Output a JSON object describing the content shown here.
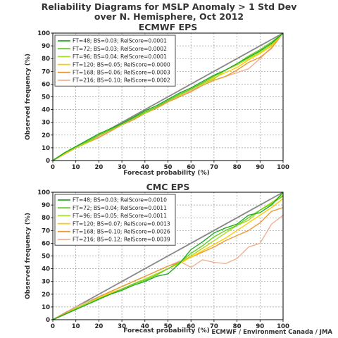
{
  "title": {
    "line1": "Reliability Diagrams for MSLP Anomaly > 1 Std Dev",
    "line2": "over N. Hemisphere, Oct 2012"
  },
  "credit": "ECMWF / Environment Canada / JMA",
  "chart_data": [
    {
      "type": "line",
      "title": "ECMWF EPS",
      "xlabel": "Forecast probability (%)",
      "ylabel": "Observed frequency (%)",
      "xlim": [
        0,
        100
      ],
      "ylim": [
        0,
        100
      ],
      "xticks": [
        "0",
        "10",
        "20",
        "30",
        "40",
        "50",
        "60",
        "70",
        "80",
        "90",
        "100"
      ],
      "yticks": [
        "0",
        "10",
        "20",
        "30",
        "40",
        "50",
        "60",
        "70",
        "80",
        "90",
        "100"
      ],
      "grid": true,
      "legend_position": "top-left",
      "diagonal": {
        "color": "#888888"
      },
      "x": [
        0,
        5,
        10,
        15,
        20,
        25,
        30,
        35,
        40,
        45,
        50,
        55,
        60,
        65,
        70,
        75,
        80,
        85,
        90,
        95,
        100
      ],
      "series": [
        {
          "name": "FT=48; BS=0.03; RelScore=0.0001",
          "color": "#22aa22",
          "values": [
            0,
            6,
            11,
            16,
            21,
            25,
            29,
            34,
            39,
            43,
            48,
            53,
            57,
            62,
            67,
            71,
            76,
            81,
            86,
            92,
            100
          ]
        },
        {
          "name": "FT=72; BS=0.03; RelScore=0.0002",
          "color": "#66cc22",
          "values": [
            0,
            6,
            11,
            15,
            20,
            24,
            29,
            33,
            38,
            42,
            47,
            52,
            56,
            61,
            66,
            71,
            76,
            82,
            87,
            93,
            100
          ]
        },
        {
          "name": "FT=96; BS=0.04; RelScore=0.0001",
          "color": "#aadd22",
          "values": [
            0,
            6,
            10,
            14,
            20,
            25,
            28,
            34,
            37,
            42,
            47,
            51,
            56,
            60,
            64,
            71,
            75,
            80,
            85,
            91,
            100
          ]
        },
        {
          "name": "FT=120; BS=0.05; RelScore=0.0000",
          "color": "#ffcc00",
          "values": [
            0,
            5,
            10,
            15,
            20,
            24,
            29,
            33,
            38,
            42,
            47,
            51,
            56,
            60,
            65,
            69,
            73,
            79,
            84,
            90,
            100
          ]
        },
        {
          "name": "FT=168; BS=0.06; RelScore=0.0003",
          "color": "#ee9933",
          "values": [
            0,
            5,
            10,
            14,
            18,
            23,
            28,
            32,
            37,
            41,
            46,
            50,
            54,
            59,
            63,
            66,
            71,
            77,
            81,
            88,
            100
          ]
        },
        {
          "name": "FT=216; BS=0.10; RelScore=0.0002",
          "color": "#f0b090",
          "values": [
            0,
            5,
            10,
            14,
            19,
            23,
            28,
            32,
            37,
            41,
            46,
            50,
            55,
            59,
            63,
            66,
            69,
            72,
            80,
            89,
            100
          ]
        }
      ]
    },
    {
      "type": "line",
      "title": "CMC EPS",
      "xlabel": "Forecast probability (%)",
      "ylabel": "Observed frequency (%)",
      "xlim": [
        0,
        100
      ],
      "ylim": [
        0,
        100
      ],
      "xticks": [
        "0",
        "10",
        "20",
        "30",
        "40",
        "50",
        "60",
        "70",
        "80",
        "90",
        "100"
      ],
      "yticks": [
        "0",
        "10",
        "20",
        "30",
        "40",
        "50",
        "60",
        "70",
        "80",
        "90",
        "100"
      ],
      "grid": true,
      "legend_position": "top-left",
      "diagonal": {
        "color": "#888888"
      },
      "x": [
        0,
        5,
        10,
        15,
        20,
        25,
        30,
        35,
        40,
        45,
        50,
        55,
        60,
        65,
        70,
        75,
        80,
        85,
        90,
        95,
        100
      ],
      "series": [
        {
          "name": "FT=48; BS=0.03; RelScore=0.0010",
          "color": "#22aa22",
          "values": [
            0,
            4,
            8,
            12,
            16,
            20,
            23,
            27,
            30,
            34,
            36,
            44,
            55,
            61,
            68,
            72,
            75,
            82,
            84,
            90,
            100
          ]
        },
        {
          "name": "FT=72; BS=0.04; RelScore=0.0011",
          "color": "#66cc22",
          "values": [
            0,
            4,
            8,
            12,
            16,
            20,
            24,
            28,
            31,
            35,
            40,
            45,
            52,
            58,
            65,
            70,
            74,
            80,
            86,
            91,
            97
          ]
        },
        {
          "name": "FT=96; BS=0.05; RelScore=0.0011",
          "color": "#aadd22",
          "values": [
            0,
            4,
            9,
            13,
            17,
            20,
            24,
            28,
            32,
            36,
            40,
            45,
            50,
            56,
            62,
            68,
            74,
            78,
            86,
            92,
            98
          ]
        },
        {
          "name": "FT=120; BS=0.07; RelScore=0.0013",
          "color": "#ffcc00",
          "values": [
            0,
            4,
            9,
            13,
            17,
            21,
            24,
            28,
            32,
            36,
            40,
            44,
            49,
            54,
            59,
            64,
            70,
            76,
            82,
            88,
            95
          ]
        },
        {
          "name": "FT=168; BS=0.10; RelScore=0.0026",
          "color": "#ee9933",
          "values": [
            0,
            5,
            9,
            13,
            18,
            22,
            26,
            30,
            34,
            38,
            42,
            45,
            49,
            53,
            57,
            62,
            66,
            70,
            76,
            85,
            88
          ]
        },
        {
          "name": "FT=216; BS=0.12; RelScore=0.0039",
          "color": "#f0b090",
          "values": [
            0,
            5,
            10,
            14,
            18,
            22,
            26,
            30,
            34,
            38,
            42,
            46,
            41,
            47,
            45,
            44,
            48,
            57,
            60,
            75,
            82
          ]
        }
      ]
    }
  ]
}
